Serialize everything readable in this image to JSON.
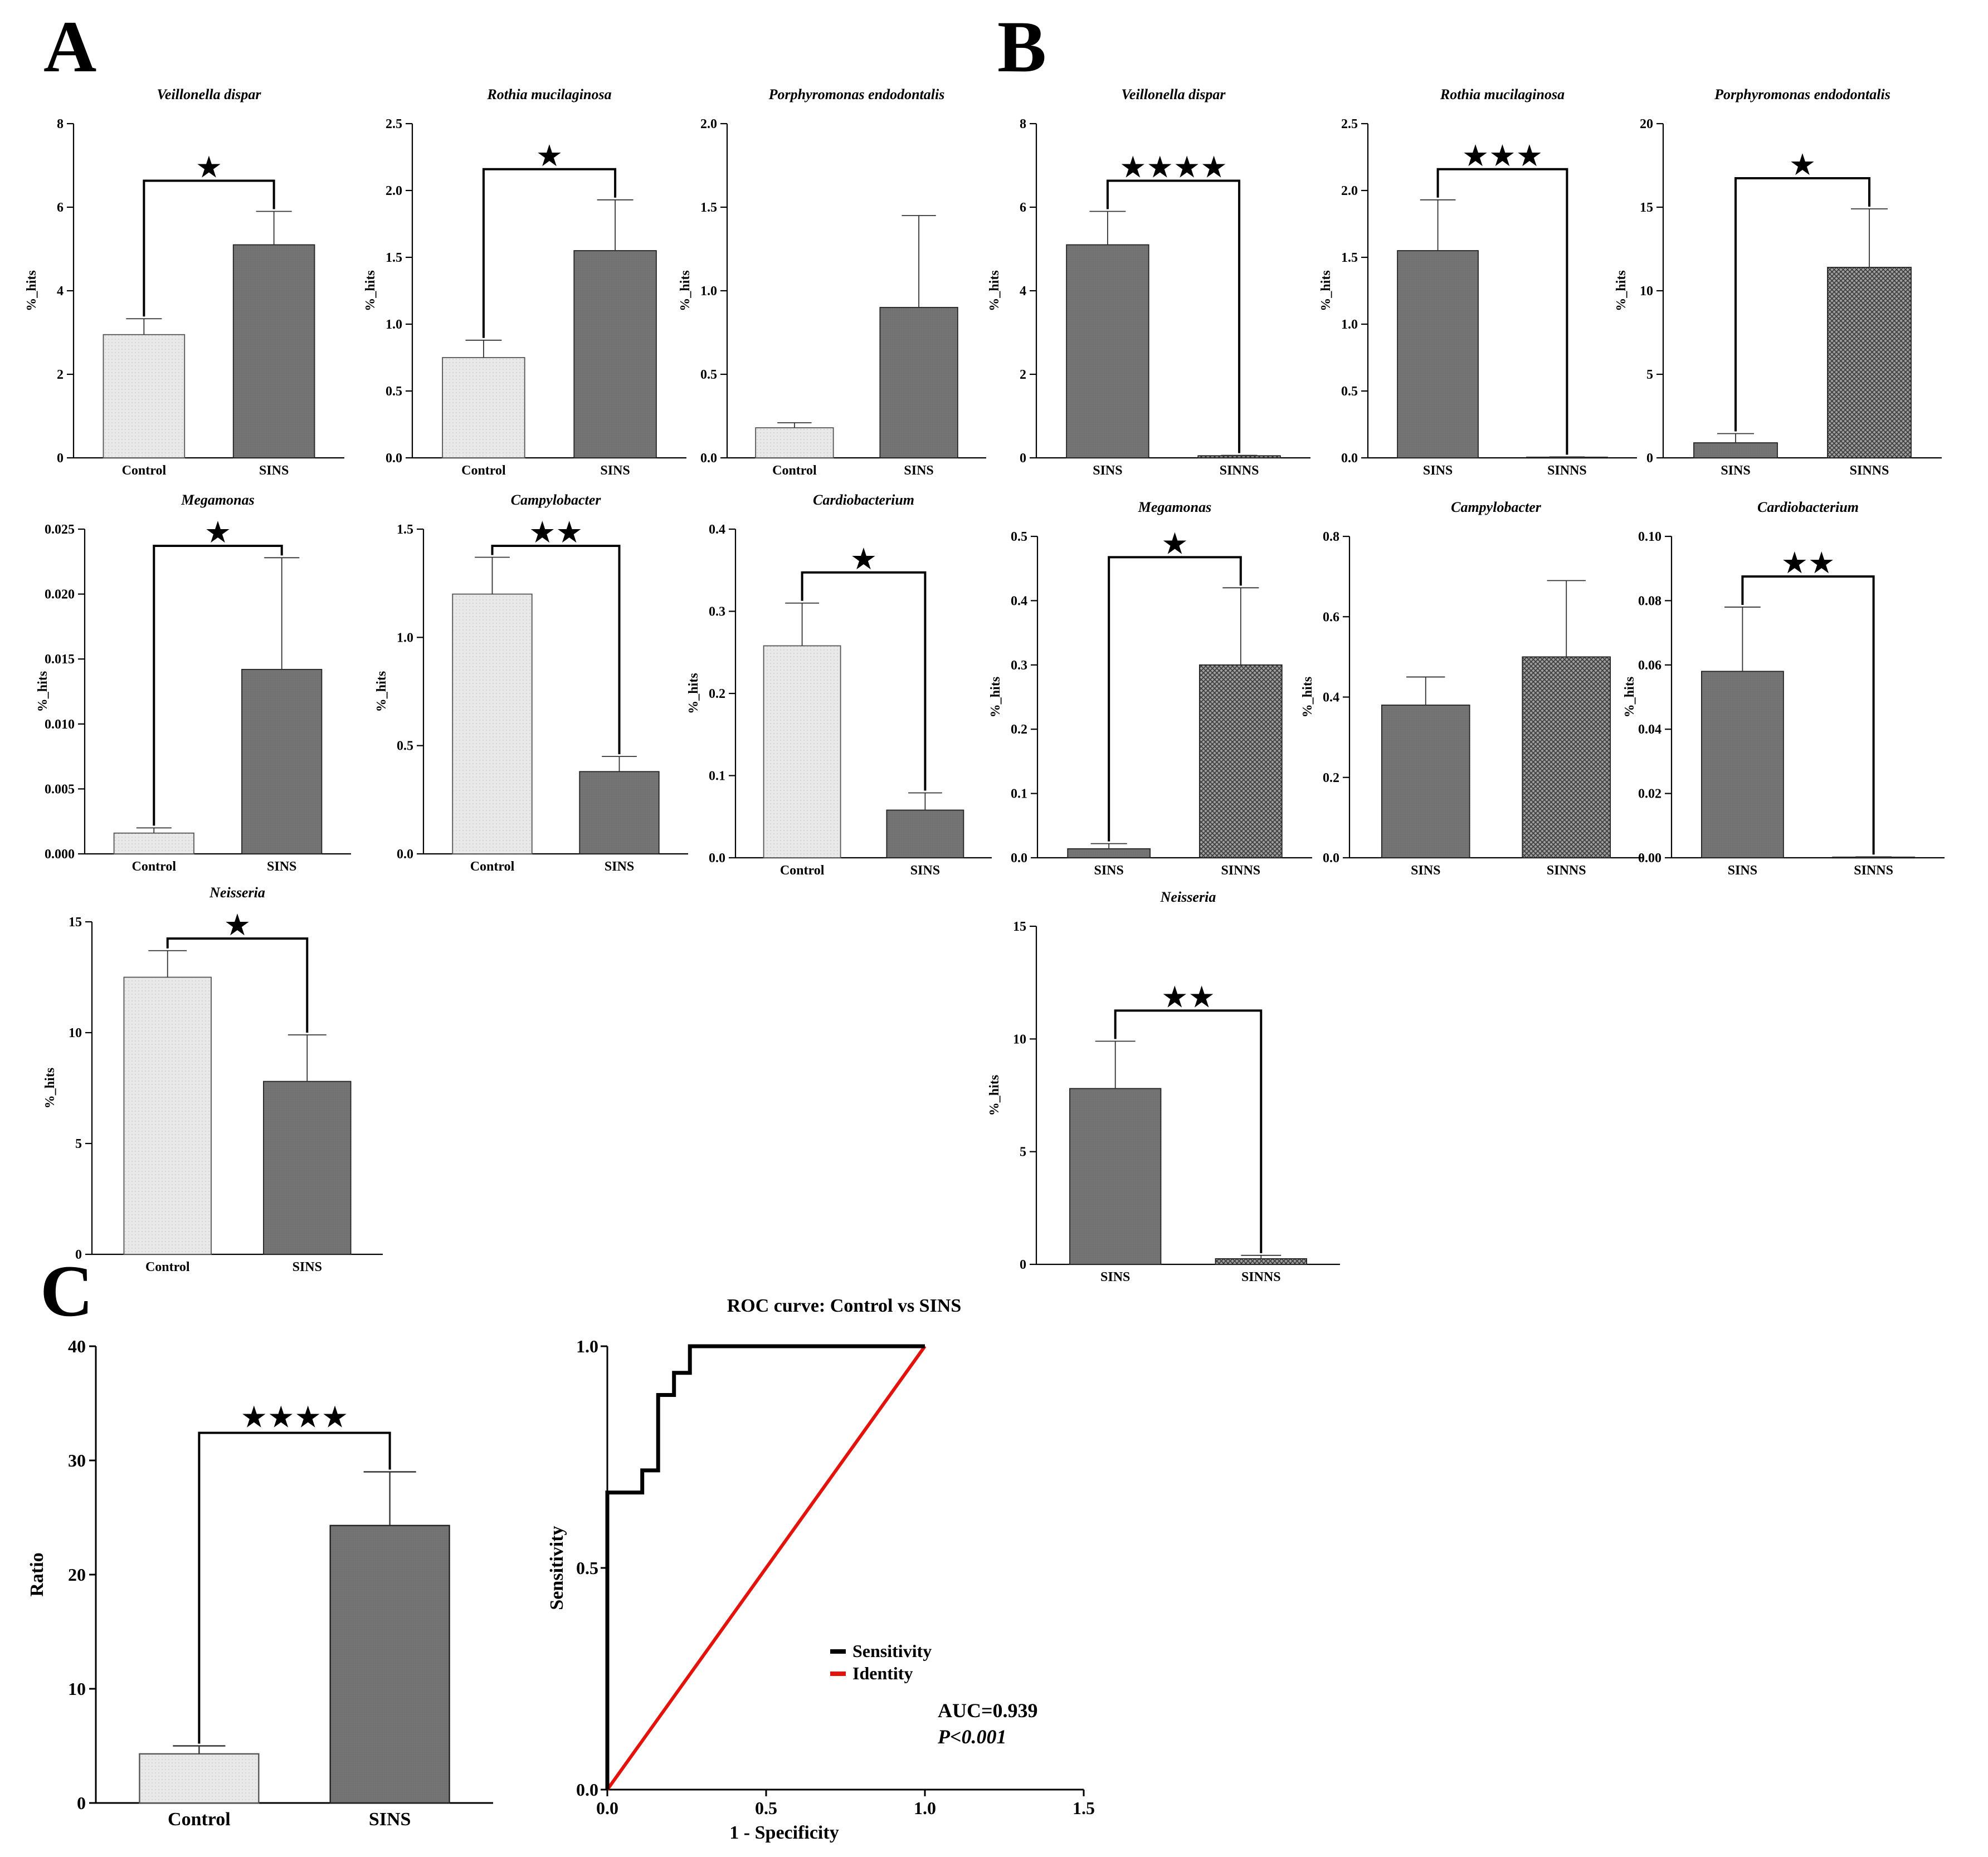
{
  "panel_labels": [
    "A",
    "B",
    "C"
  ],
  "colors": {
    "control_fill": "#e6e6e6",
    "sins_fill": "#737373",
    "sinns_fill": "#9a9a9a",
    "sensitivity_line": "#000000",
    "identity_line": "#e3120b"
  },
  "chart_data": [
    {
      "id": "A1",
      "panel": "A",
      "type": "bar",
      "title": "Veillonella dispar",
      "ylabel": "%_hits",
      "categories": [
        "Control",
        "SINS"
      ],
      "values": [
        2.95,
        5.1
      ],
      "errors": [
        0.38,
        0.8
      ],
      "fills": [
        "control",
        "sins"
      ],
      "ylim": [
        0,
        8
      ],
      "yticks": [
        "0",
        "2",
        "4",
        "6",
        "8"
      ],
      "significance": "★"
    },
    {
      "id": "A2",
      "panel": "A",
      "type": "bar",
      "title": "Rothia mucilaginosa",
      "ylabel": "%_hits",
      "categories": [
        "Control",
        "SINS"
      ],
      "values": [
        0.75,
        1.55
      ],
      "errors": [
        0.13,
        0.38
      ],
      "fills": [
        "control",
        "sins"
      ],
      "ylim": [
        0,
        2.5
      ],
      "yticks": [
        "0.0",
        "0.5",
        "1.0",
        "1.5",
        "2.0",
        "2.5"
      ],
      "significance": "★"
    },
    {
      "id": "A3",
      "panel": "A",
      "type": "bar",
      "title": "Porphyromonas endodontalis",
      "ylabel": "%_hits",
      "categories": [
        "Control",
        "SINS"
      ],
      "values": [
        0.18,
        0.9
      ],
      "errors": [
        0.03,
        0.55
      ],
      "fills": [
        "control",
        "sins"
      ],
      "ylim": [
        0,
        2.0
      ],
      "yticks": [
        "0.0",
        "0.5",
        "1.0",
        "1.5",
        "2.0"
      ],
      "significance": ""
    },
    {
      "id": "A4",
      "panel": "A",
      "type": "bar",
      "title": "Megamonas",
      "ylabel": "%_hits",
      "categories": [
        "Control",
        "SINS"
      ],
      "values": [
        0.0016,
        0.0142
      ],
      "errors": [
        0.0004,
        0.0086
      ],
      "fills": [
        "control",
        "sins"
      ],
      "ylim": [
        0,
        0.025
      ],
      "yticks": [
        "0.000",
        "0.005",
        "0.010",
        "0.015",
        "0.020",
        "0.025"
      ],
      "significance": "★"
    },
    {
      "id": "A5",
      "panel": "A",
      "type": "bar",
      "title": "Campylobacter",
      "ylabel": "%_hits",
      "categories": [
        "Control",
        "SINS"
      ],
      "values": [
        1.2,
        0.38
      ],
      "errors": [
        0.17,
        0.07
      ],
      "fills": [
        "control",
        "sins"
      ],
      "ylim": [
        0,
        1.5
      ],
      "yticks": [
        "0.0",
        "0.5",
        "1.0",
        "1.5"
      ],
      "significance": "★★"
    },
    {
      "id": "A6",
      "panel": "A",
      "type": "bar",
      "title": "Cardiobacterium",
      "ylabel": "%_hits",
      "categories": [
        "Control",
        "SINS"
      ],
      "values": [
        0.258,
        0.058
      ],
      "errors": [
        0.052,
        0.021
      ],
      "fills": [
        "control",
        "sins"
      ],
      "ylim": [
        0,
        0.4
      ],
      "yticks": [
        "0.0",
        "0.1",
        "0.2",
        "0.3",
        "0.4"
      ],
      "significance": "★"
    },
    {
      "id": "A7",
      "panel": "A",
      "type": "bar",
      "title": "Neisseria",
      "ylabel": "%_hits",
      "categories": [
        "Control",
        "SINS"
      ],
      "values": [
        12.5,
        7.8
      ],
      "errors": [
        1.2,
        2.1
      ],
      "fills": [
        "control",
        "sins"
      ],
      "ylim": [
        0,
        15
      ],
      "yticks": [
        "0",
        "5",
        "10",
        "15"
      ],
      "significance": "★"
    },
    {
      "id": "B1",
      "panel": "B",
      "type": "bar",
      "title": "Veillonella dispar",
      "ylabel": "%_hits",
      "categories": [
        "SINS",
        "SINNS"
      ],
      "values": [
        5.1,
        0.05
      ],
      "errors": [
        0.8,
        0.01
      ],
      "fills": [
        "sins",
        "sinns"
      ],
      "ylim": [
        0,
        8
      ],
      "yticks": [
        "0",
        "2",
        "4",
        "6",
        "8"
      ],
      "significance": "★★★★"
    },
    {
      "id": "B2",
      "panel": "B",
      "type": "bar",
      "title": "Rothia mucilaginosa",
      "ylabel": "%_hits",
      "categories": [
        "SINS",
        "SINNS"
      ],
      "values": [
        1.55,
        0.005
      ],
      "errors": [
        0.38,
        0.002
      ],
      "fills": [
        "sins",
        "sinns"
      ],
      "ylim": [
        0,
        2.5
      ],
      "yticks": [
        "0.0",
        "0.5",
        "1.0",
        "1.5",
        "2.0",
        "2.5"
      ],
      "significance": "★★★"
    },
    {
      "id": "B3",
      "panel": "B",
      "type": "bar",
      "title": "Porphyromonas endodontalis",
      "ylabel": "%_hits",
      "categories": [
        "SINS",
        "SINNS"
      ],
      "values": [
        0.9,
        11.4
      ],
      "errors": [
        0.55,
        3.5
      ],
      "fills": [
        "sins",
        "sinns"
      ],
      "ylim": [
        0,
        20
      ],
      "yticks": [
        "0",
        "5",
        "10",
        "15",
        "20"
      ],
      "significance": "★"
    },
    {
      "id": "B4",
      "panel": "B",
      "type": "bar",
      "title": "Megamonas",
      "ylabel": "%_hits",
      "categories": [
        "SINS",
        "SINNS"
      ],
      "values": [
        0.014,
        0.3
      ],
      "errors": [
        0.008,
        0.12
      ],
      "fills": [
        "sins",
        "sinns"
      ],
      "ylim": [
        0,
        0.5
      ],
      "yticks": [
        "0.0",
        "0.1",
        "0.2",
        "0.3",
        "0.4",
        "0.5"
      ],
      "significance": "★"
    },
    {
      "id": "B5",
      "panel": "B",
      "type": "bar",
      "title": "Campylobacter",
      "ylabel": "%_hits",
      "categories": [
        "SINS",
        "SINNS"
      ],
      "values": [
        0.38,
        0.5
      ],
      "errors": [
        0.07,
        0.19
      ],
      "fills": [
        "sins",
        "sinns"
      ],
      "ylim": [
        0,
        0.8
      ],
      "yticks": [
        "0.0",
        "0.2",
        "0.4",
        "0.6",
        "0.8"
      ],
      "significance": ""
    },
    {
      "id": "B6",
      "panel": "B",
      "type": "bar",
      "title": "Cardiobacterium",
      "ylabel": "%_hits",
      "categories": [
        "SINS",
        "SINNS"
      ],
      "values": [
        0.058,
        0.0002
      ],
      "errors": [
        0.02,
        0.0001
      ],
      "fills": [
        "sins",
        "sinns"
      ],
      "ylim": [
        0,
        0.1
      ],
      "yticks": [
        "0.00",
        "0.02",
        "0.04",
        "0.06",
        "0.08",
        "0.10"
      ],
      "significance": "★★"
    },
    {
      "id": "B7",
      "panel": "B",
      "type": "bar",
      "title": "Neisseria",
      "ylabel": "%_hits",
      "categories": [
        "SINS",
        "SINNS"
      ],
      "values": [
        7.8,
        0.25
      ],
      "errors": [
        2.1,
        0.15
      ],
      "fills": [
        "sins",
        "sinns"
      ],
      "ylim": [
        0,
        15
      ],
      "yticks": [
        "0",
        "5",
        "10",
        "15"
      ],
      "significance": "★★"
    },
    {
      "id": "C1",
      "panel": "C",
      "type": "bar",
      "title": "",
      "ylabel": "Ratio",
      "categories": [
        "Control",
        "SINS"
      ],
      "values": [
        4.3,
        24.3
      ],
      "errors": [
        0.7,
        4.7
      ],
      "fills": [
        "control",
        "sins"
      ],
      "ylim": [
        0,
        40
      ],
      "yticks": [
        "0",
        "10",
        "20",
        "30",
        "40"
      ],
      "significance": "★★★★"
    },
    {
      "id": "C2",
      "panel": "C",
      "type": "line",
      "title": "ROC curve: Control vs SINS",
      "xlabel": "1 - Specificity",
      "ylabel": "Sensitivity",
      "xlim": [
        0,
        1.5
      ],
      "ylim": [
        0,
        1.0
      ],
      "xticks": [
        "0.0",
        "0.5",
        "1.0",
        "1.5"
      ],
      "yticks": [
        "0.0",
        "0.5",
        "1.0"
      ],
      "series": [
        {
          "name": "Sensitivity",
          "color": "sensitivity_line",
          "x": [
            0,
            0,
            0.11,
            0.11,
            0.16,
            0.16,
            0.21,
            0.21,
            0.26,
            0.26,
            1.0
          ],
          "y": [
            0,
            0.67,
            0.67,
            0.72,
            0.72,
            0.89,
            0.89,
            0.94,
            0.94,
            1.0,
            1.0
          ]
        },
        {
          "name": "Identity",
          "color": "identity_line",
          "x": [
            0,
            1.0
          ],
          "y": [
            0,
            1.0
          ]
        }
      ],
      "annotations": [
        "AUC=0.939",
        "P<0.001"
      ]
    }
  ]
}
